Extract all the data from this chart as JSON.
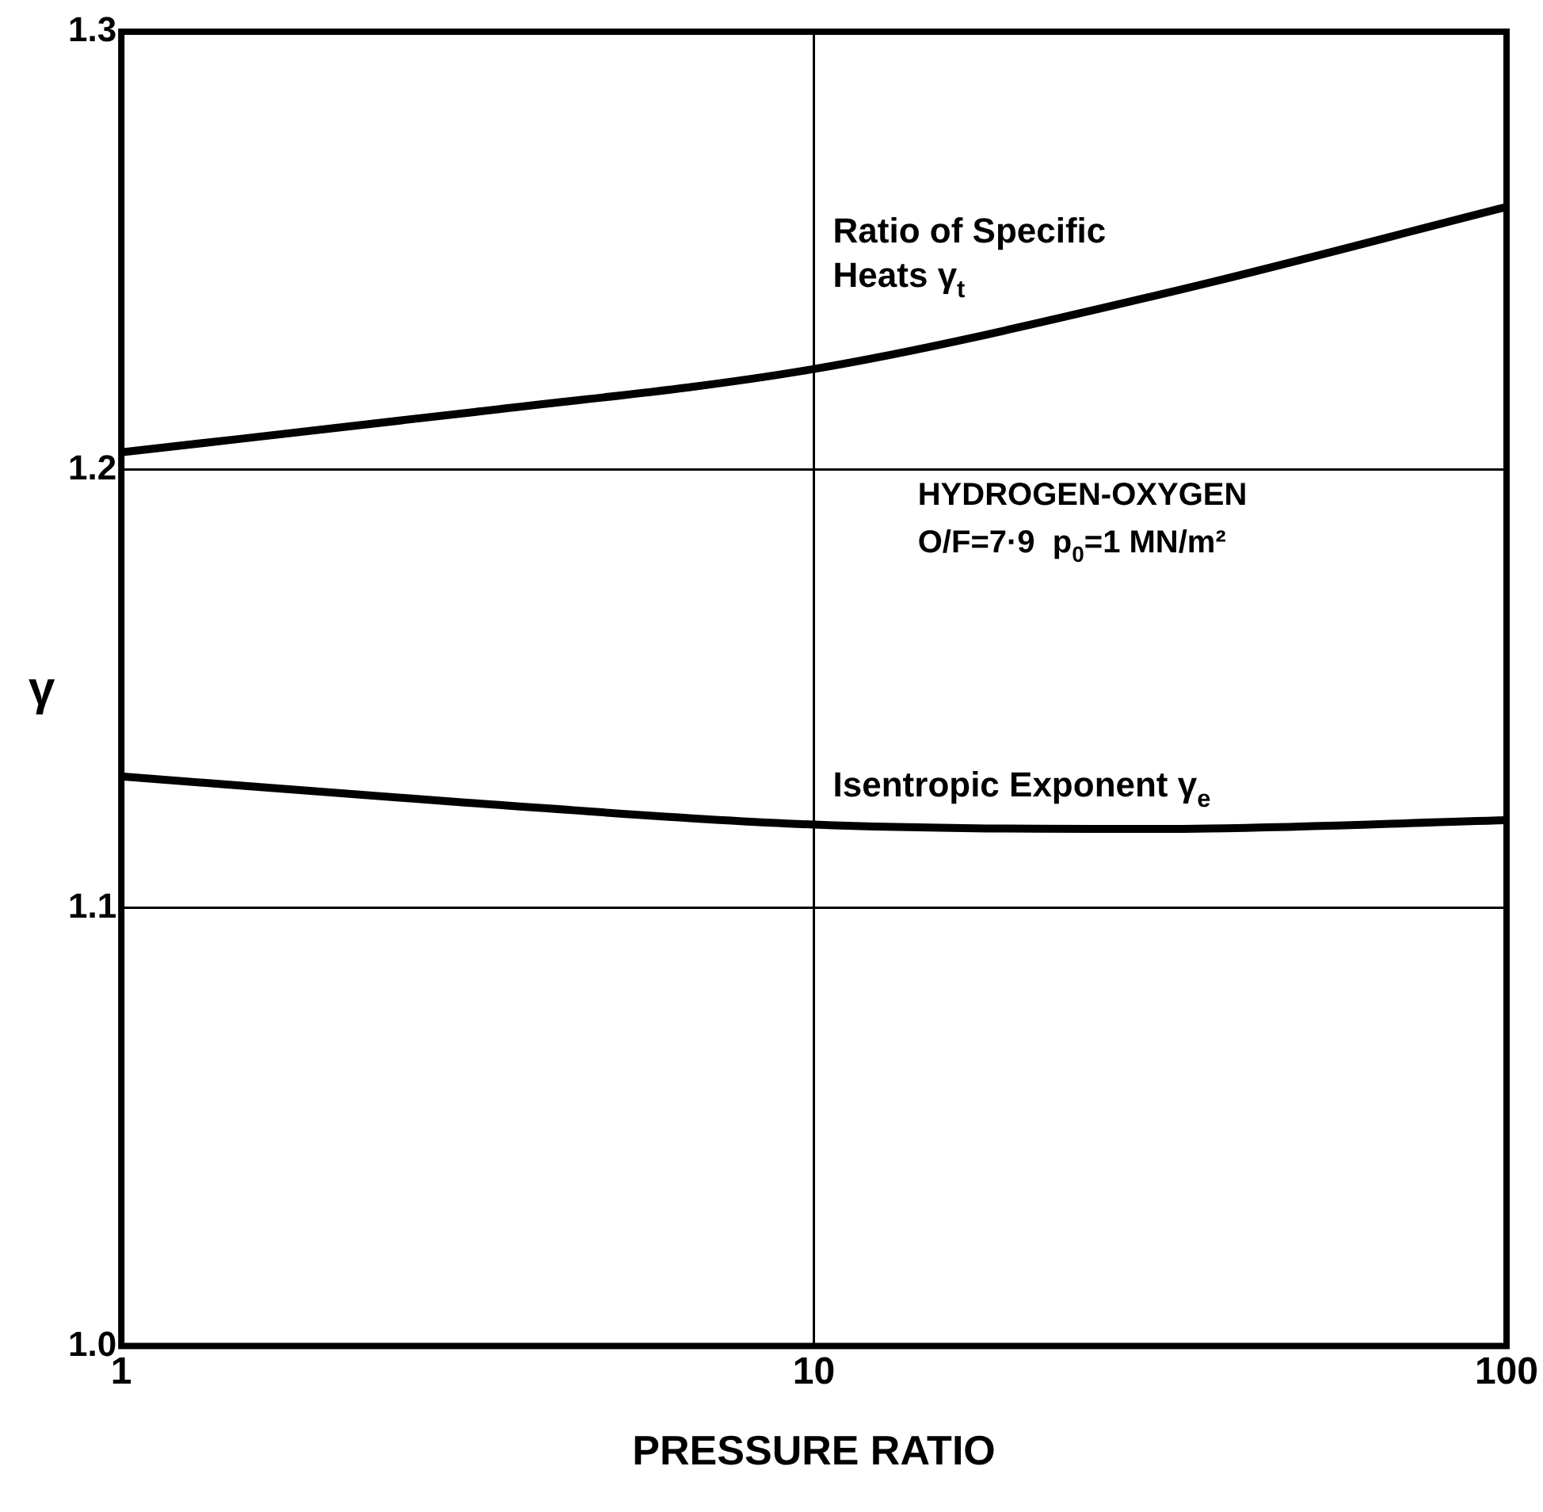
{
  "chart_data": {
    "type": "line",
    "xlabel": "PRESSURE RATIO",
    "ylabel": "γ",
    "x": [
      1,
      3.16,
      10,
      31.6,
      100
    ],
    "series": [
      {
        "name": "Ratio of Specific Heats γ$_{t}$",
        "color": "#000000",
        "values": [
          1.204,
          1.213,
          1.223,
          1.24,
          1.26
        ]
      },
      {
        "name": "Isentropic Exponent γ$_{e}$",
        "color": "#000000",
        "values": [
          1.13,
          1.124,
          1.119,
          1.118,
          1.12
        ]
      }
    ],
    "annotations": [
      "HYDROGEN-OXYGEN",
      "O/F=7·9  p$_{0}$=1 MN/m²"
    ],
    "log": "x",
    "xlim": [
      1,
      100
    ],
    "xticks": [
      1,
      10,
      100
    ],
    "ylim": [
      1.0,
      1.3
    ],
    "yticks": [
      {
        "value": 1.0,
        "label": "1.0"
      },
      {
        "value": 1.1,
        "label": "1.1"
      },
      {
        "value": 1.2,
        "label": "1.2"
      },
      {
        "value": 1.3,
        "label": "1.3"
      }
    ],
    "grid": true,
    "legend": false,
    "marker": "none",
    "line_style": "solid"
  }
}
